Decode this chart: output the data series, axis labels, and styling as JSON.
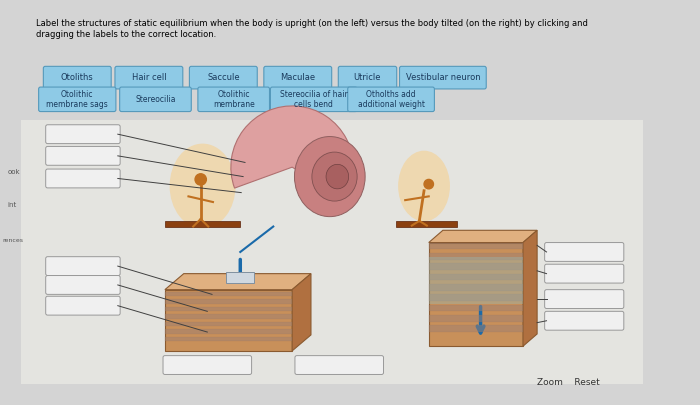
{
  "title_text": "Label the structures of static equilibrium when the body is upright (on the left) versus the body tilted (on the right) by clicking and\ndragging the labels to the correct location.",
  "bg_color": "#d4d4d4",
  "content_bg": "#e8e8e6",
  "button_bg": "#8ecae6",
  "button_border": "#5599bb",
  "button_text_color": "#1a3a5c",
  "row1_labels": [
    "Otoliths",
    "Hair cell",
    "Saccule",
    "Maculae",
    "Utricle",
    "Vestibular neuron"
  ],
  "row2_labels": [
    "Otolithic\nmembrane sags",
    "Stereocilia",
    "Otolithic\nmembrane",
    "Stereocilia of hair\ncells bend",
    "Otholths add\nadditional weight"
  ],
  "zoom_reset_text": "Zoom    Reset",
  "blank_box_bg": "#f0f0f0",
  "blank_box_border": "#999999"
}
